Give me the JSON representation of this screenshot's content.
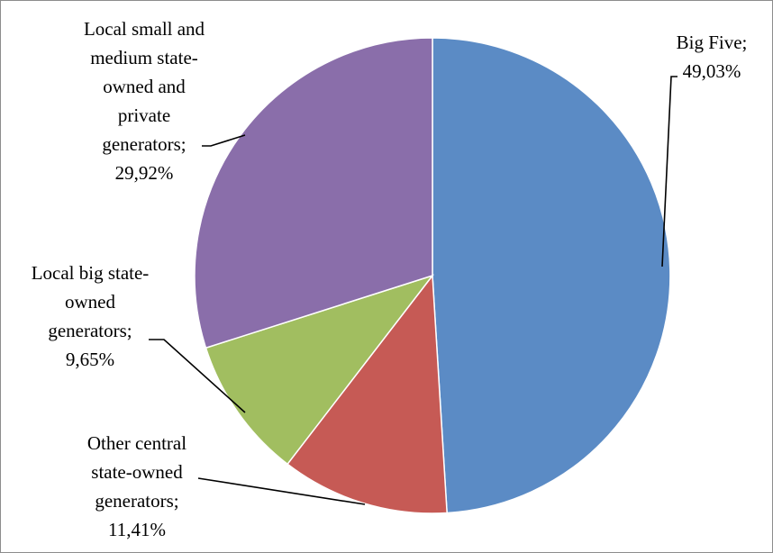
{
  "chart_data": {
    "type": "pie",
    "title": "",
    "start_angle_deg": 0,
    "direction": "clockwise",
    "slices": [
      {
        "label_lines": [
          "Big Five;",
          "49,03%"
        ],
        "category": "Big Five",
        "value": 49.03,
        "value_label": "49,03%",
        "color": "#5b8bc5"
      },
      {
        "label_lines": [
          "Other central",
          "state-owned",
          "generators;",
          "11,41%"
        ],
        "category": "Other central state-owned generators",
        "value": 11.41,
        "value_label": "11,41%",
        "color": "#c65a55"
      },
      {
        "label_lines": [
          "Local big state-",
          "owned",
          "generators;",
          "9,65%"
        ],
        "category": "Local big state-owned generators",
        "value": 9.65,
        "value_label": "9,65%",
        "color": "#a1be60"
      },
      {
        "label_lines": [
          "Local small and",
          "medium state-",
          "owned and",
          "private",
          "generators;",
          "29,92%"
        ],
        "category": "Local small and medium state-owned and private generators",
        "value": 29.92,
        "value_label": "29,92%",
        "color": "#8a6eaa"
      }
    ],
    "legend": "none",
    "grid": false
  }
}
